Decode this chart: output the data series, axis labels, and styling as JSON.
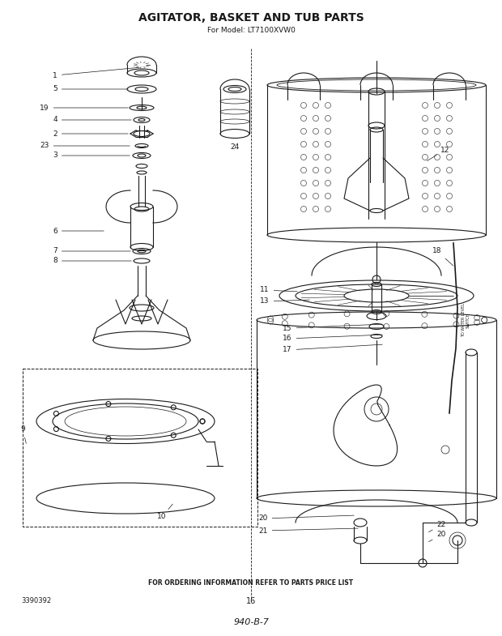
{
  "title": "AGITATOR, BASKET AND TUB PARTS",
  "subtitle": "For Model: LT7100XVW0",
  "footer_text": "FOR ORDERING INFORMATION REFER TO PARTS PRICE LIST",
  "page_number": "16",
  "doc_number": "3390392",
  "code": "940-B-7",
  "bg_color": "#ffffff",
  "line_color": "#1a1a1a",
  "figsize": [
    6.2,
    7.85
  ],
  "dpi": 100
}
